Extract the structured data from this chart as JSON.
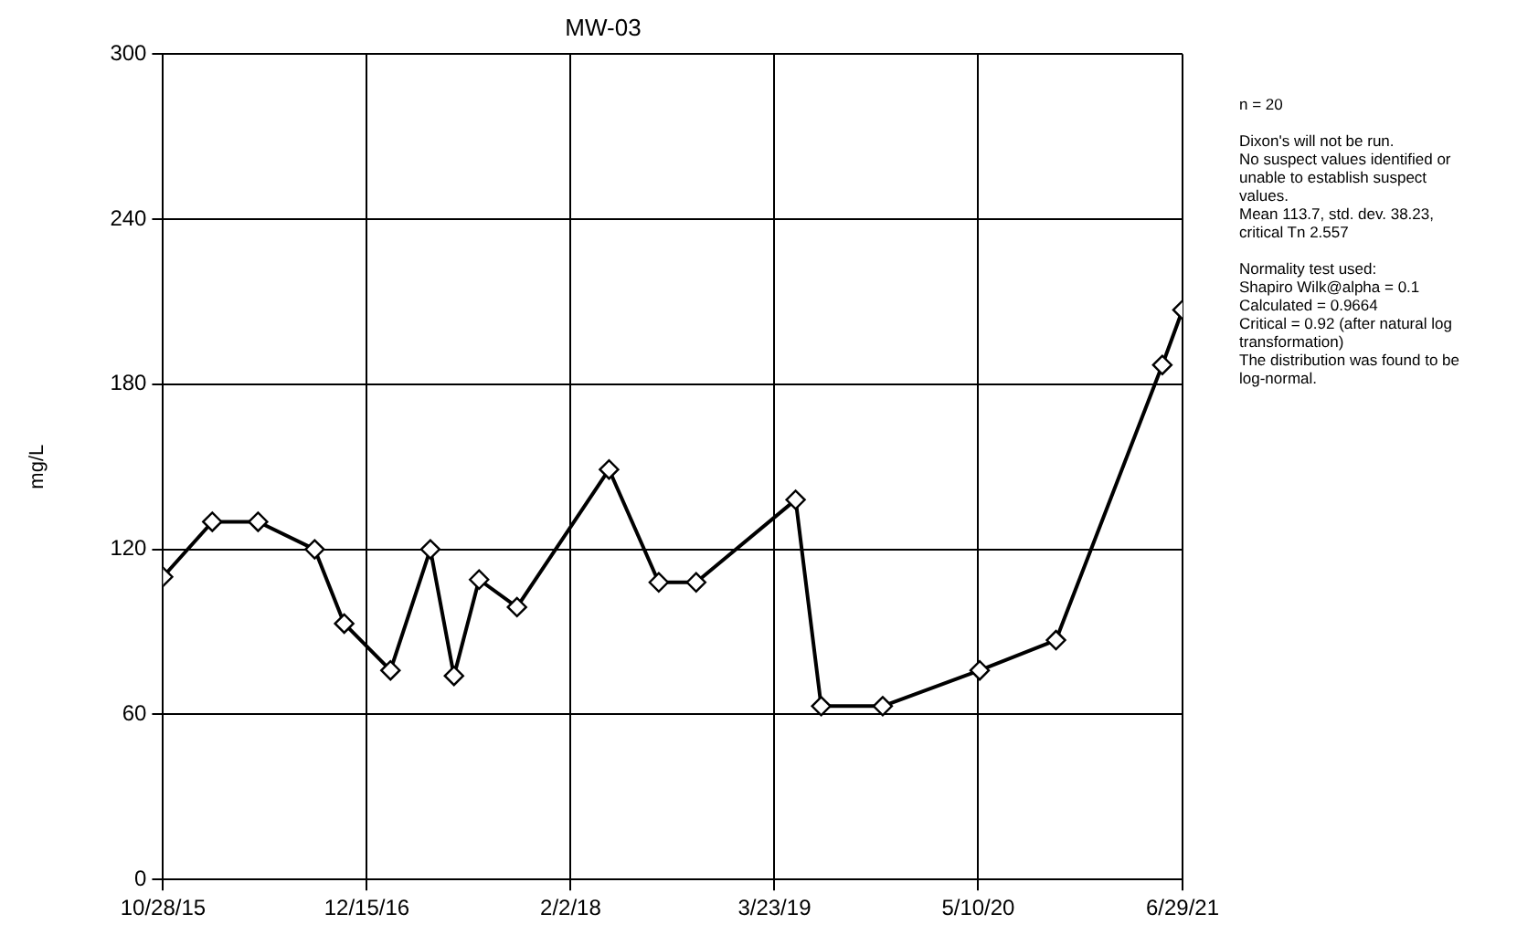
{
  "chart_data": {
    "type": "line",
    "title": "MW-03",
    "ylabel": "mg/L",
    "x": [
      "2015-10-28",
      "2016-02-05",
      "2016-05-08",
      "2016-08-31",
      "2016-10-30",
      "2017-02-01",
      "2017-04-23",
      "2017-06-10",
      "2017-07-31",
      "2017-10-16",
      "2018-04-21",
      "2018-07-31",
      "2018-10-15",
      "2019-05-05",
      "2019-06-26",
      "2019-10-29",
      "2020-05-13",
      "2020-10-15",
      "2021-05-19",
      "2021-06-29"
    ],
    "series": [
      {
        "color": "#000000",
        "values": [
          110,
          130,
          130,
          120,
          93,
          76,
          120,
          74,
          109,
          99,
          149,
          108,
          108,
          138,
          63,
          63,
          76,
          87,
          187,
          207
        ]
      }
    ],
    "xlim": [
      "2015-10-28",
      "2021-06-29"
    ],
    "xticks": [
      {
        "value": "2015-10-28",
        "label": "10/28/15"
      },
      {
        "value": "2016-12-15",
        "label": "12/15/16"
      },
      {
        "value": "2018-02-02",
        "label": "2/2/18"
      },
      {
        "value": "2019-03-23",
        "label": "3/23/19"
      },
      {
        "value": "2020-05-10",
        "label": "5/10/20"
      },
      {
        "value": "2021-06-29",
        "label": "6/29/21"
      }
    ],
    "ylim": [
      0,
      300
    ],
    "yticks": [
      0,
      60,
      120,
      180,
      240,
      300
    ],
    "grid": true,
    "legend": false,
    "marker": "diamond",
    "line_style": "solid",
    "annotations": [
      "n = 20",
      "Dixon's will not be run.\nNo suspect values identified or unable to establish suspect values.\nMean 113.7, std. dev. 38.23, critical Tn 2.557",
      "Normality test used:\nShapiro Wilk@alpha = 0.1\nCalculated = 0.9664\nCritical = 0.92 (after natural log transformation)\nThe distribution was found to be log-normal."
    ]
  }
}
